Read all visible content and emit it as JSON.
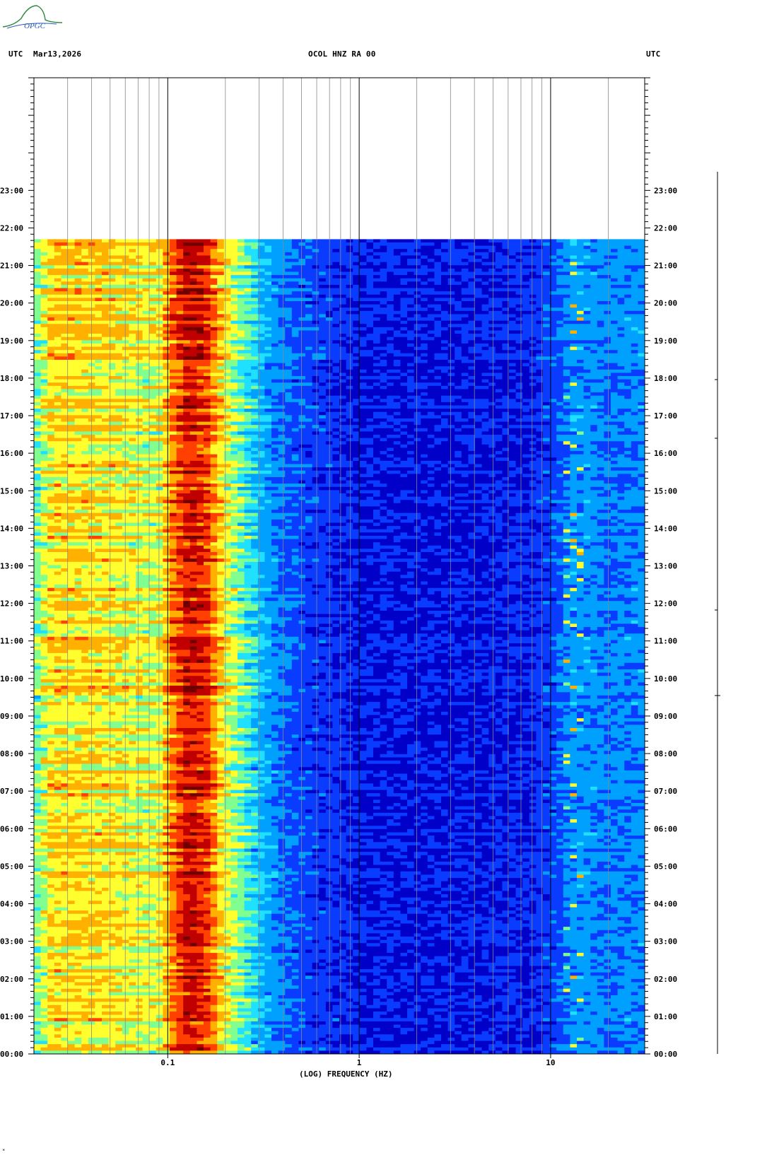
{
  "header": {
    "left_tz": "UTC",
    "date": "Mar13,2026",
    "station": "OCOL HNZ RA 00",
    "right_tz": "UTC"
  },
  "logo": {
    "text": "OPGC",
    "color": "#2a8a3a"
  },
  "footer_mark": "*",
  "chart_data": {
    "type": "heatmap",
    "title": "OCOL HNZ RA 00",
    "xlabel": "(LOG) FREQUENCY (HZ)",
    "x_scale": "log",
    "xlim": [
      0.02,
      31
    ],
    "x_ticks": [
      {
        "value": 0.1,
        "label": "0.1"
      },
      {
        "value": 1,
        "label": "1"
      },
      {
        "value": 10,
        "label": "10"
      }
    ],
    "x_gridlines": [
      0.03,
      0.04,
      0.05,
      0.06,
      0.07,
      0.08,
      0.09,
      0.1,
      0.2,
      0.3,
      0.4,
      0.5,
      0.6,
      0.7,
      0.8,
      0.9,
      1,
      2,
      3,
      4,
      5,
      6,
      7,
      8,
      9,
      10,
      20
    ],
    "y_axis": "time UTC",
    "ylim_hours": [
      0,
      26
    ],
    "y_ticks": [
      "00:00",
      "01:00",
      "02:00",
      "03:00",
      "04:00",
      "05:00",
      "06:00",
      "07:00",
      "08:00",
      "09:00",
      "10:00",
      "11:00",
      "12:00",
      "13:00",
      "14:00",
      "15:00",
      "16:00",
      "17:00",
      "18:00",
      "19:00",
      "20:00",
      "21:00",
      "22:00",
      "23:00"
    ],
    "data_end_hour": 21.7,
    "colormap": [
      "#0000c8",
      "#0a3cff",
      "#00a0ff",
      "#20e0ff",
      "#80ff90",
      "#ffff30",
      "#ffb000",
      "#ff4000",
      "#c00000",
      "#700000"
    ],
    "spectral_profile": [
      {
        "freq": 0.02,
        "level": 0.4
      },
      {
        "freq": 0.025,
        "level": 0.6
      },
      {
        "freq": 0.05,
        "level": 0.58
      },
      {
        "freq": 0.08,
        "level": 0.52
      },
      {
        "freq": 0.095,
        "level": 0.55
      },
      {
        "freq": 0.1,
        "level": 0.68
      },
      {
        "freq": 0.13,
        "level": 0.88
      },
      {
        "freq": 0.16,
        "level": 0.8
      },
      {
        "freq": 0.2,
        "level": 0.55
      },
      {
        "freq": 0.25,
        "level": 0.4
      },
      {
        "freq": 0.3,
        "level": 0.28
      },
      {
        "freq": 0.4,
        "level": 0.16
      },
      {
        "freq": 0.6,
        "level": 0.1
      },
      {
        "freq": 1,
        "level": 0.05
      },
      {
        "freq": 3,
        "level": 0.04
      },
      {
        "freq": 8,
        "level": 0.06
      },
      {
        "freq": 11,
        "level": 0.14
      },
      {
        "freq": 13,
        "level": 0.22
      },
      {
        "freq": 20,
        "level": 0.18
      },
      {
        "freq": 31,
        "level": 0.2
      }
    ],
    "grid": true
  }
}
